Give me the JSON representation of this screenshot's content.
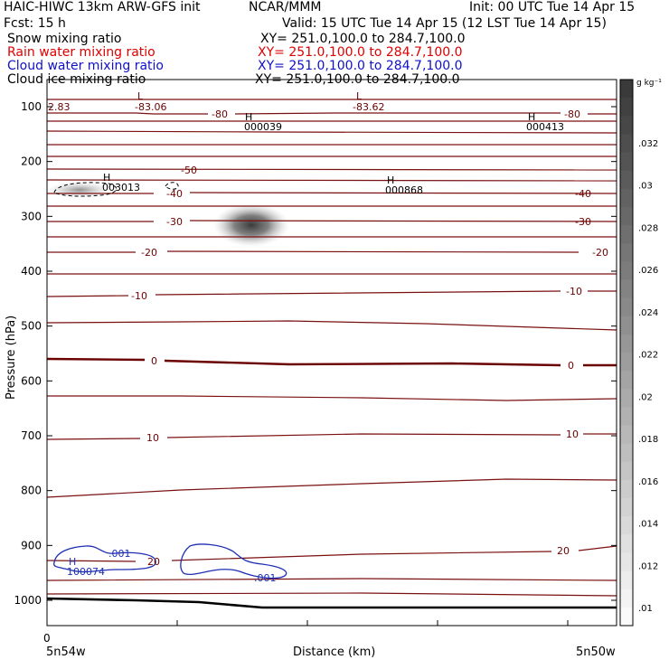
{
  "header": {
    "title": "HAIC-HIWC 13km ARW-GFS init",
    "org": "NCAR/MMM",
    "init": "Init: 00 UTC Tue 14 Apr 15",
    "fcst": "Fcst:    15 h",
    "valid": "Valid: 15 UTC Tue 14 Apr 15 (12 LST Tue 14 Apr 15)",
    "fields": [
      {
        "name": "Snow mixing ratio",
        "xy": "XY=  251.0,100.0  to  284.7,100.0",
        "color": "#000000"
      },
      {
        "name": "Rain water mixing ratio",
        "xy": "XY=  251.0,100.0  to  284.7,100.0",
        "color": "#e00000"
      },
      {
        "name": "Cloud water mixing ratio",
        "xy": "XY=  251.0,100.0  to  284.7,100.0",
        "color": "#1010c8"
      },
      {
        "name": "Cloud ice mixing ratio",
        "xy": "XY=  251.0,100.0  to  284.7,100.0",
        "color": "#000000"
      }
    ]
  },
  "chart_data": {
    "type": "heatmap",
    "xlabel": "Distance (km)",
    "ylabel": "Pressure (hPa)",
    "x_start_label": "5n54w",
    "x_end_label": "5n50w",
    "x_origin_label": "0",
    "y_ticks": [
      100,
      200,
      300,
      400,
      500,
      600,
      700,
      800,
      900,
      1000
    ],
    "ylim": [
      1050,
      50
    ],
    "colorbar": {
      "unit": "g kg⁻¹",
      "ticks": [
        ".032",
        ".03",
        ".028",
        ".026",
        ".024",
        ".022",
        ".02",
        ".018",
        ".016",
        ".014",
        ".012",
        ".01"
      ]
    },
    "temperature_contour_labels": [
      "-80",
      "-50",
      "-40",
      "-30",
      "-20",
      "-10",
      "0",
      "10",
      "20"
    ],
    "extrema_labels": [
      {
        "kind": "L",
        "value": "-83.06"
      },
      {
        "kind": "L",
        "value": "-83.62"
      },
      {
        "kind": "H",
        "value": "000039"
      },
      {
        "kind": "H",
        "value": "000413"
      },
      {
        "kind": "H",
        "value": "003013"
      },
      {
        "kind": "H",
        "value": "000868"
      },
      {
        "kind": "H",
        "value": "100074"
      }
    ],
    "edge_label": "2.83",
    "cloud_water_labels": [
      ".001",
      ".001"
    ]
  }
}
